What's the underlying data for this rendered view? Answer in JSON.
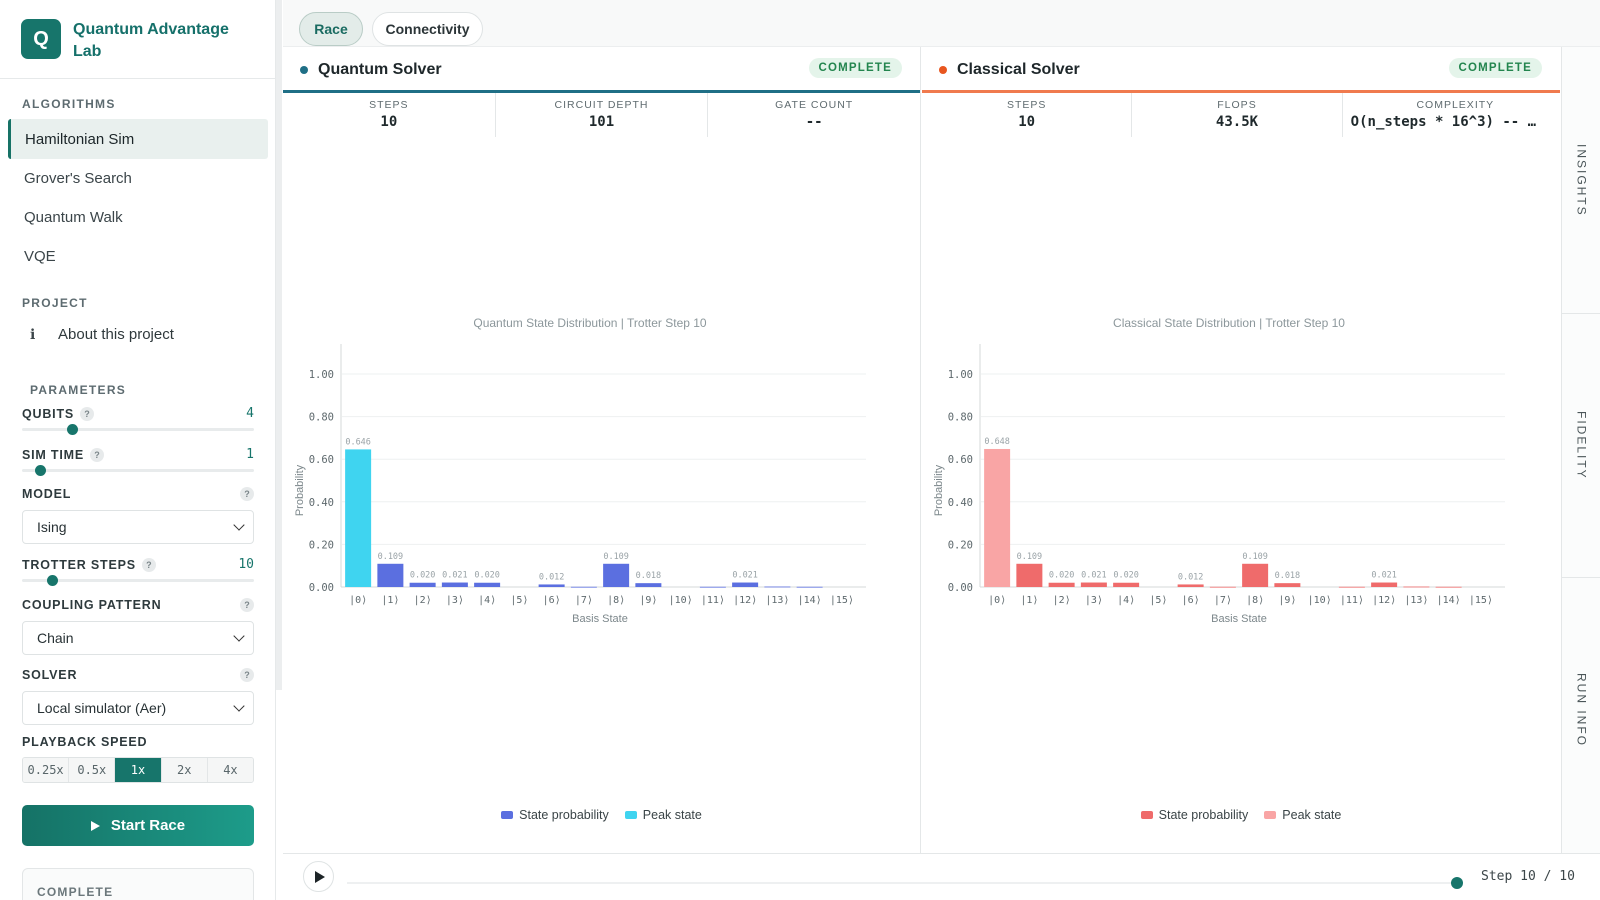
{
  "brand": {
    "logo_letter": "Q",
    "title": "Quantum Advantage Lab"
  },
  "sidebar": {
    "algorithms_label": "ALGORITHMS",
    "algorithms": [
      {
        "label": "Hamiltonian Sim",
        "active": true
      },
      {
        "label": "Grover's Search",
        "active": false
      },
      {
        "label": "Quantum Walk",
        "active": false
      },
      {
        "label": "VQE",
        "active": false
      }
    ],
    "project_label": "PROJECT",
    "about_icon": "info-icon",
    "about_label": "About this project",
    "parameters_label": "PARAMETERS",
    "qubits": {
      "label": "QUBITS",
      "value": "4",
      "level": 0.2
    },
    "sim_time": {
      "label": "SIM TIME",
      "value": "1",
      "level": 0.0
    },
    "model": {
      "label": "MODEL",
      "value": "Ising"
    },
    "trotter_steps": {
      "label": "TROTTER STEPS",
      "value": "10",
      "level": 0.1
    },
    "coupling_pattern": {
      "label": "COUPLING PATTERN",
      "value": "Chain"
    },
    "solver": {
      "label": "SOLVER",
      "value": "Local simulator (Aer)"
    },
    "playback_speed": {
      "label": "PLAYBACK SPEED",
      "options": [
        "0.25x",
        "0.5x",
        "1x",
        "2x",
        "4x"
      ],
      "selected": "1x"
    },
    "start_label": "Start Race",
    "status": "COMPLETE",
    "help_glyph": "?"
  },
  "tabs": [
    {
      "label": "Race",
      "active": true
    },
    {
      "label": "Connectivity",
      "active": false
    }
  ],
  "quantum": {
    "name": "Quantum Solver",
    "status": "COMPLETE",
    "accent": "#1f6f86",
    "dot_color": "#1f6f86",
    "stats": [
      {
        "key": "STEPS",
        "value": "10"
      },
      {
        "key": "CIRCUIT DEPTH",
        "value": "101"
      },
      {
        "key": "GATE COUNT",
        "value": "--"
      }
    ]
  },
  "classical": {
    "name": "Classical Solver",
    "status": "COMPLETE",
    "accent": "#f07a4e",
    "dot_color": "#e8561f",
    "stats": [
      {
        "key": "STEPS",
        "value": "10"
      },
      {
        "key": "FLOPS",
        "value": "43.5K"
      },
      {
        "key": "COMPLEXITY",
        "value": "O(n_steps * 16^3) -- …"
      }
    ]
  },
  "chart_data": [
    {
      "type": "bar",
      "title": "Quantum State Distribution | Trotter Step 10",
      "xlabel": "Basis State",
      "ylabel": "Probability",
      "ylim": [
        0,
        1.0
      ],
      "yticks": [
        "0.00",
        "0.20",
        "0.40",
        "0.60",
        "0.80",
        "1.00"
      ],
      "grid": true,
      "categories": [
        "|0⟩",
        "|1⟩",
        "|2⟩",
        "|3⟩",
        "|4⟩",
        "|5⟩",
        "|6⟩",
        "|7⟩",
        "|8⟩",
        "|9⟩",
        "|10⟩",
        "|11⟩",
        "|12⟩",
        "|13⟩",
        "|14⟩",
        "|15⟩"
      ],
      "values": [
        0.646,
        0.109,
        0.02,
        0.021,
        0.02,
        0.0,
        0.012,
        0.001,
        0.109,
        0.018,
        0.0,
        0.001,
        0.021,
        0.002,
        0.001,
        0.0
      ],
      "labels": [
        "0.646",
        "0.109",
        "0.020",
        "0.021",
        "0.020",
        "",
        "0.012",
        "",
        "0.109",
        "0.018",
        "",
        "",
        "0.021",
        "",
        "",
        ""
      ],
      "peak_index": 0,
      "colors": {
        "state": "#5b6fe0",
        "peak": "#3fd4f0",
        "label": "#9aa3a7"
      },
      "legend": [
        "State probability",
        "Peak state"
      ]
    },
    {
      "type": "bar",
      "title": "Classical State Distribution | Trotter Step 10",
      "xlabel": "Basis State",
      "ylabel": "Probability",
      "ylim": [
        0,
        1.0
      ],
      "yticks": [
        "0.00",
        "0.20",
        "0.40",
        "0.60",
        "0.80",
        "1.00"
      ],
      "grid": true,
      "categories": [
        "|0⟩",
        "|1⟩",
        "|2⟩",
        "|3⟩",
        "|4⟩",
        "|5⟩",
        "|6⟩",
        "|7⟩",
        "|8⟩",
        "|9⟩",
        "|10⟩",
        "|11⟩",
        "|12⟩",
        "|13⟩",
        "|14⟩",
        "|15⟩"
      ],
      "values": [
        0.648,
        0.109,
        0.02,
        0.021,
        0.02,
        0.0,
        0.012,
        0.001,
        0.109,
        0.018,
        0.0,
        0.001,
        0.021,
        0.002,
        0.001,
        0.0
      ],
      "labels": [
        "0.648",
        "0.109",
        "0.020",
        "0.021",
        "0.020",
        "",
        "0.012",
        "",
        "0.109",
        "0.018",
        "",
        "",
        "0.021",
        "",
        "",
        ""
      ],
      "peak_index": 0,
      "colors": {
        "state": "#ef6b6b",
        "peak": "#f9a5a5",
        "label": "#9aa3a7"
      },
      "legend": [
        "State probability",
        "Peak state"
      ]
    }
  ],
  "rail": [
    "INSIGHTS",
    "FIDELITY",
    "RUN INFO"
  ],
  "playback": {
    "step_text": "Step 10 / 10",
    "progress": 1.0
  }
}
